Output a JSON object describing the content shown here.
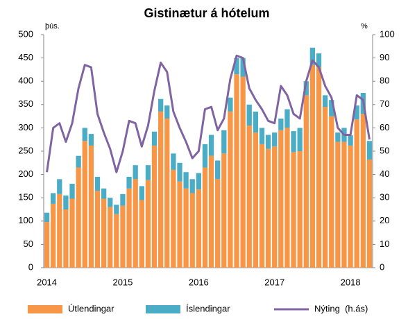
{
  "chart_data": {
    "type": "bar",
    "title": "Gistinætur á hótelum",
    "y_unit": "þús.",
    "y2_unit": "%",
    "categories": [
      "2014",
      null,
      null,
      null,
      null,
      null,
      null,
      null,
      null,
      null,
      null,
      null,
      "2015",
      null,
      null,
      null,
      null,
      null,
      null,
      null,
      null,
      null,
      null,
      null,
      "2016",
      null,
      null,
      null,
      null,
      null,
      null,
      null,
      null,
      null,
      null,
      null,
      "2017",
      null,
      null,
      null,
      null,
      null,
      null,
      null,
      null,
      null,
      null,
      null,
      "2018",
      null,
      null,
      null
    ],
    "series": [
      {
        "name": "Útlendingar",
        "color": "#f79646",
        "kind": "bar",
        "values": [
          98,
          137,
          158,
          125,
          148,
          215,
          272,
          262,
          165,
          148,
          130,
          115,
          133,
          170,
          190,
          145,
          188,
          262,
          335,
          320,
          210,
          185,
          170,
          160,
          168,
          215,
          240,
          190,
          245,
          335,
          415,
          410,
          305,
          290,
          265,
          255,
          260,
          295,
          300,
          248,
          250,
          370,
          435,
          430,
          345,
          325,
          270,
          270,
          262,
          318,
          330,
          232
        ]
      },
      {
        "name": "Íslendingar",
        "color": "#4bacc6",
        "kind": "bar",
        "values": [
          20,
          23,
          32,
          30,
          32,
          25,
          28,
          25,
          30,
          22,
          20,
          20,
          25,
          25,
          30,
          30,
          32,
          30,
          27,
          28,
          35,
          40,
          35,
          30,
          35,
          50,
          45,
          40,
          50,
          30,
          35,
          40,
          45,
          45,
          35,
          30,
          30,
          25,
          40,
          45,
          50,
          30,
          37,
          30,
          25,
          35,
          20,
          30,
          22,
          30,
          45,
          40
        ]
      },
      {
        "name": "Nýting  (h.ás)",
        "color": "#8064a2",
        "kind": "line",
        "axis": "y2",
        "values": [
          41,
          60,
          62,
          54,
          62,
          77,
          87,
          86,
          66,
          58,
          51,
          41,
          50,
          63,
          62,
          52,
          61,
          76,
          88,
          84,
          67,
          60,
          54,
          47,
          50,
          68,
          69,
          59,
          64,
          81,
          91,
          90,
          77,
          72,
          68,
          63,
          62,
          78,
          74,
          66,
          64,
          80,
          89,
          86,
          78,
          73,
          60,
          57,
          57,
          74,
          72,
          55
        ]
      }
    ],
    "ylim": [
      0,
      500
    ],
    "yticks": [
      0,
      50,
      100,
      150,
      200,
      250,
      300,
      350,
      400,
      450,
      500
    ],
    "y2lim": [
      0,
      100
    ],
    "y2ticks": [
      0,
      10,
      20,
      30,
      40,
      50,
      60,
      70,
      80,
      90,
      100
    ],
    "stacked": true,
    "grid": false,
    "legend": "bottom"
  }
}
